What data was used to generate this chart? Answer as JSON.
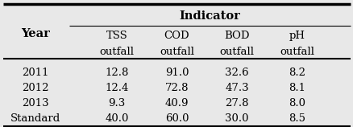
{
  "title": "Indicator",
  "col_headers_line1": [
    "TSS",
    "COD",
    "BOD",
    "pH"
  ],
  "col_headers_line2": [
    "outfall",
    "outfall",
    "outfall",
    "outfall"
  ],
  "row_headers": [
    "Year",
    "2011",
    "2012",
    "2013",
    "Standard"
  ],
  "table_data": [
    [
      "12.8",
      "91.0",
      "32.6",
      "8.2"
    ],
    [
      "12.4",
      "72.8",
      "47.3",
      "8.1"
    ],
    [
      "9.3",
      "40.9",
      "27.8",
      "8.0"
    ],
    [
      "40.0",
      "60.0",
      "30.0",
      "8.5"
    ]
  ],
  "bg_color": "#e8e8e8",
  "fontsize": 9.5,
  "title_fontsize": 10.5
}
